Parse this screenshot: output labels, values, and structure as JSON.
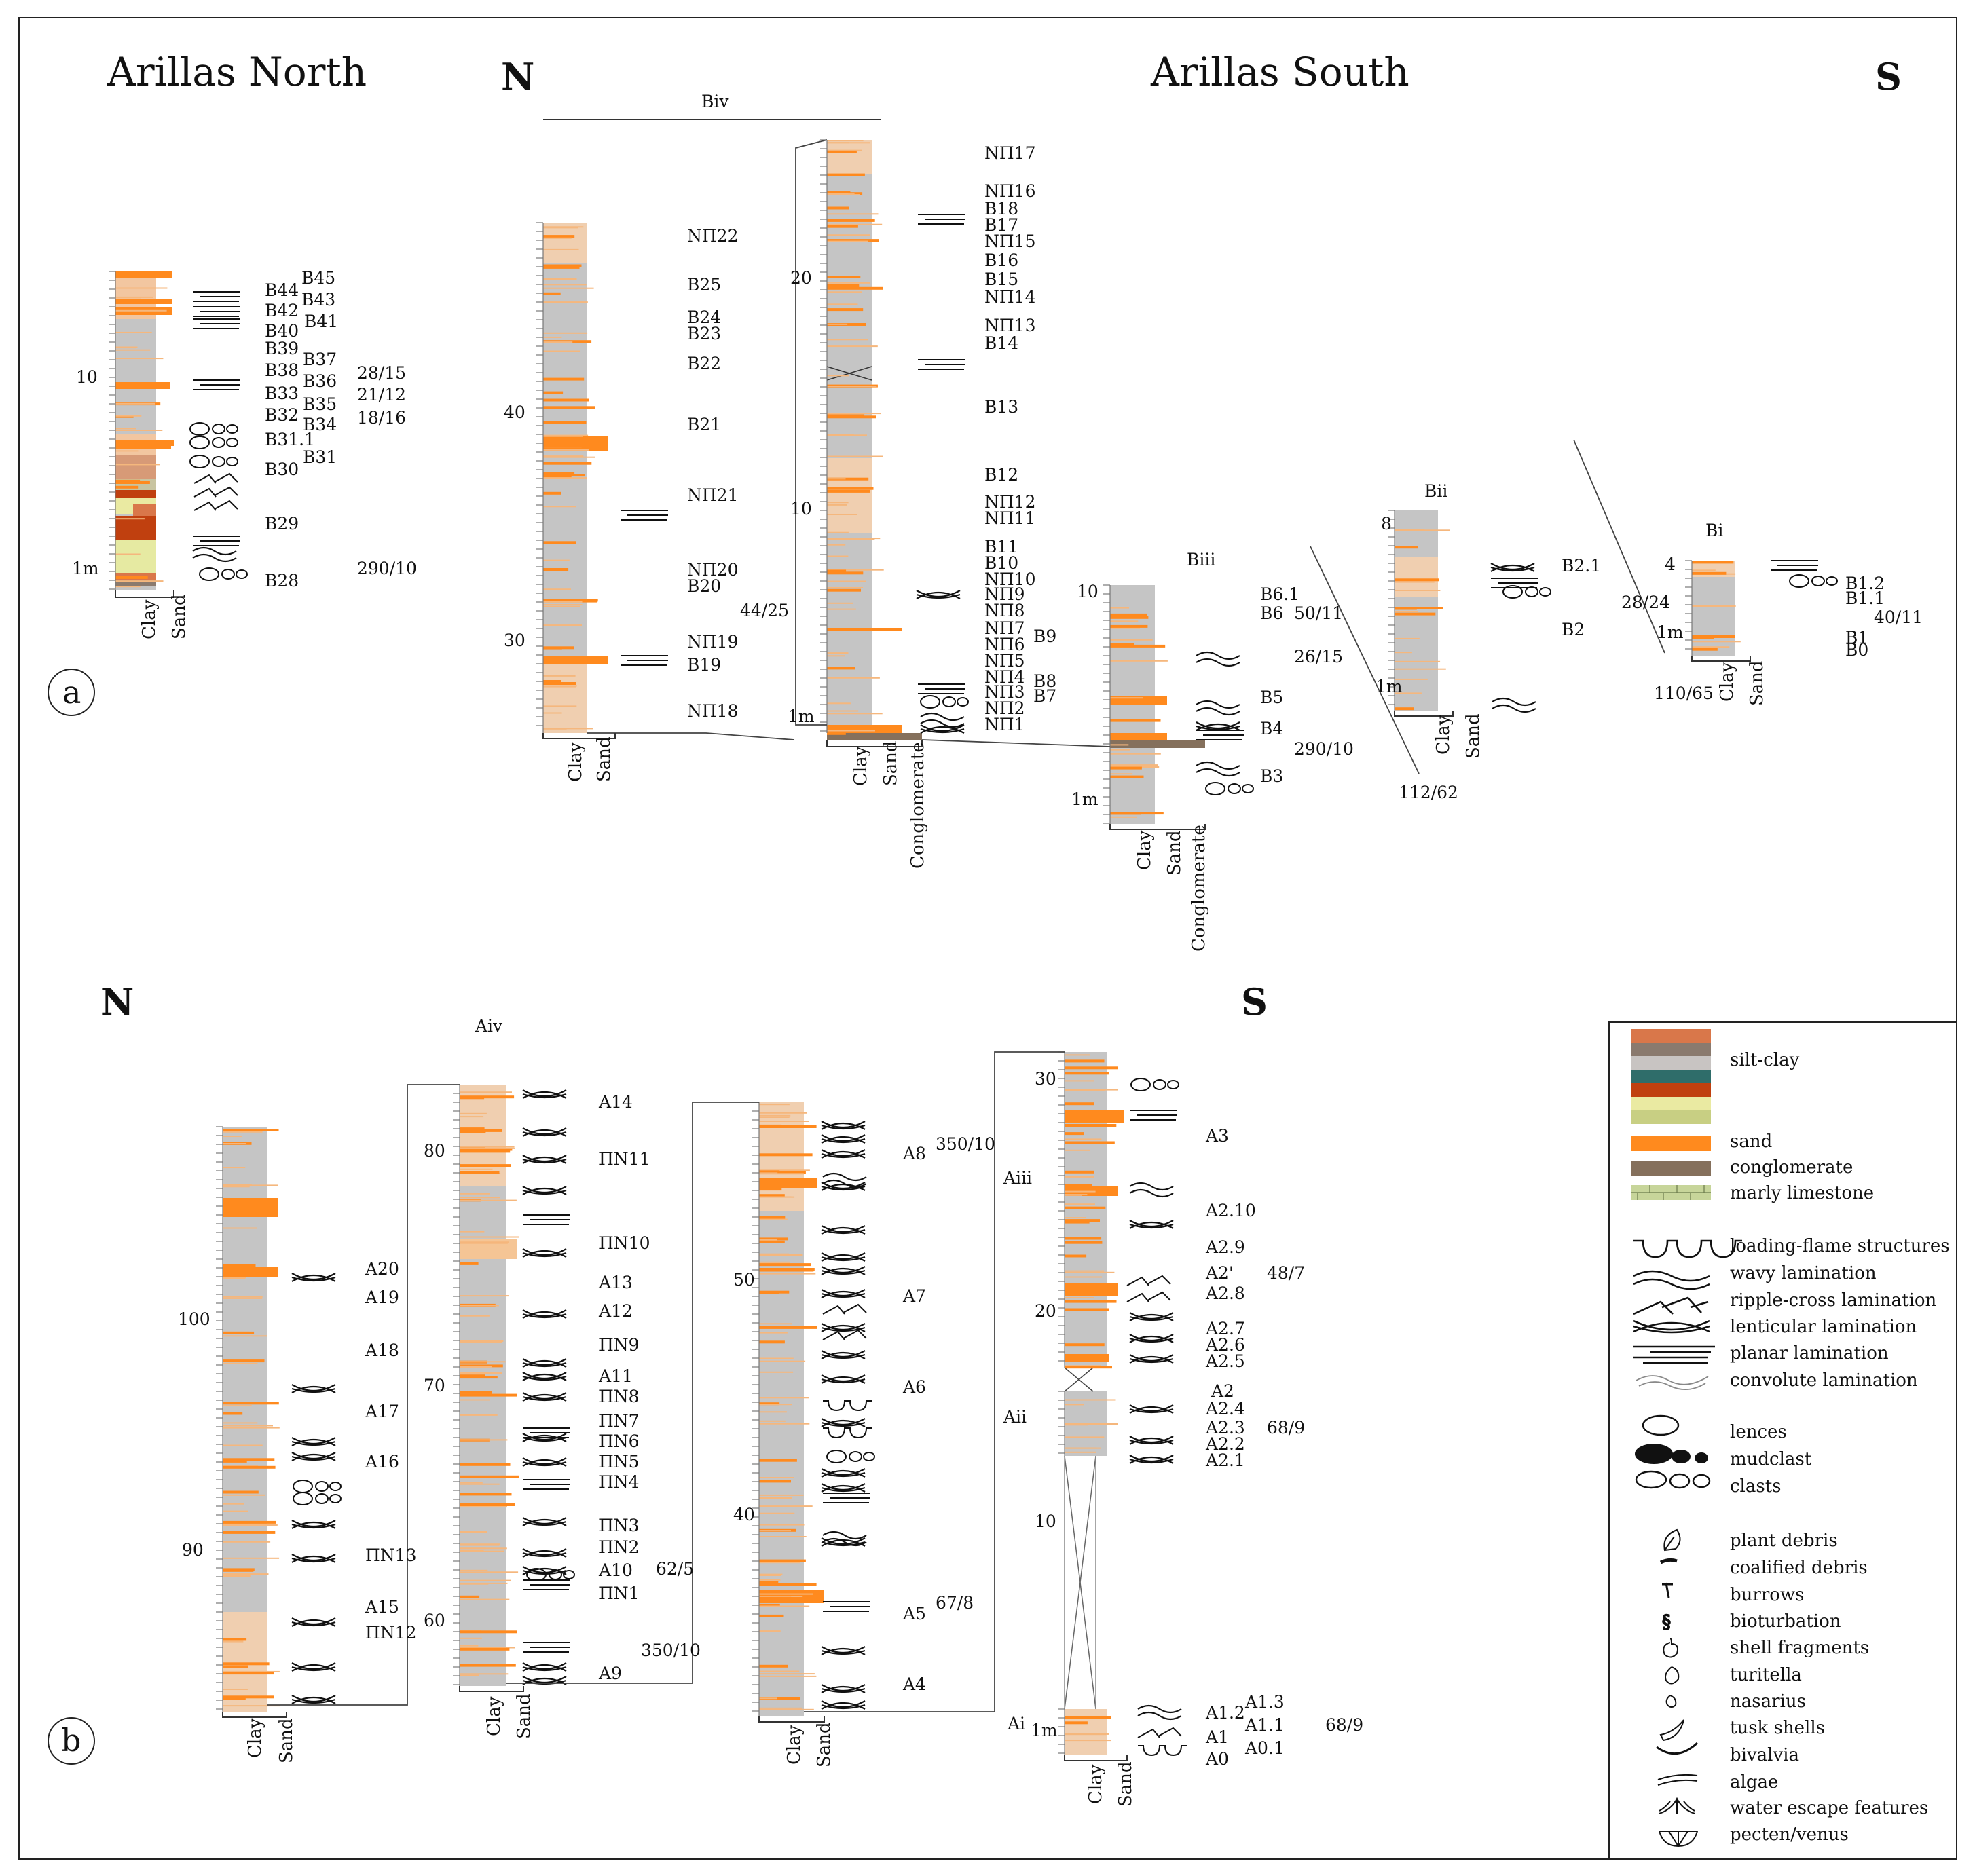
{
  "titles": {
    "arillas_north": "Arillas North",
    "arillas_south": "Arillas South",
    "north_top": "N",
    "south_top": "S",
    "north_bottom": "N",
    "south_bottom": "S",
    "panel_a": "a",
    "panel_b": "b"
  },
  "axis_labels": {
    "clay": "Clay",
    "sand": "Sand",
    "conglomerate": "Conglomerate",
    "one_meter": "1m"
  },
  "sections": {
    "north": {
      "ticks": [
        "10"
      ],
      "samples": [
        "B45",
        "B44",
        "B43",
        "B42",
        "B41",
        "B40",
        "B39",
        "B37",
        "B38",
        "B36",
        "B33",
        "B35",
        "B32",
        "B34",
        "B31.1",
        "B31",
        "B30",
        "B29",
        "B28"
      ],
      "orientations": [
        "28/15",
        "21/12",
        "18/16",
        "290/10"
      ]
    },
    "biv": {
      "name": "Biv",
      "ticks": [
        "40",
        "30"
      ],
      "samples": [
        "NΠ22",
        "B25",
        "B24",
        "B23",
        "B22",
        "B21",
        "NΠ21",
        "NΠ20",
        "B20",
        "NΠ19",
        "B19",
        "NΠ18"
      ],
      "orientations": [
        "44/25"
      ]
    },
    "biv2": {
      "ticks": [
        "20",
        "10"
      ],
      "samples": [
        "NΠ17",
        "NΠ16",
        "B18",
        "B17",
        "NΠ15",
        "B16",
        "B15",
        "NΠ14",
        "NΠ13",
        "B14",
        "B13",
        "B12",
        "NΠ12",
        "NΠ11",
        "B11",
        "B10",
        "NΠ10",
        "NΠ9",
        "NΠ8",
        "B9",
        "NΠ7",
        "NΠ6",
        "NΠ5",
        "NΠ4",
        "B8",
        "NΠ3",
        "B7",
        "NΠ2",
        "NΠ1"
      ]
    },
    "biii": {
      "name": "Biii",
      "ticks": [
        "10"
      ],
      "samples": [
        "B6.1",
        "B6",
        "B5",
        "B4",
        "B3"
      ],
      "orientations": [
        "50/11",
        "26/15",
        "290/10"
      ]
    },
    "bii": {
      "name": "Bii",
      "ticks": [
        "8"
      ],
      "samples": [
        "B2.1",
        "B2"
      ],
      "orientations": [
        "28/24",
        "112/62"
      ]
    },
    "bi": {
      "name": "Bi",
      "ticks": [
        "4"
      ],
      "samples": [
        "B1.2",
        "B1.1",
        "B1",
        "B0"
      ],
      "orientations": [
        "40/11",
        "110/65"
      ]
    },
    "a_col1": {
      "ticks": [
        "100",
        "90"
      ],
      "samples": [
        "A20",
        "A19",
        "A18",
        "A17",
        "A16",
        "ΠN13",
        "A15",
        "ΠN12"
      ]
    },
    "aiv": {
      "name": "Aiv",
      "ticks": [
        "80",
        "70",
        "60"
      ],
      "samples": [
        "A14",
        "ΠN11",
        "ΠN10",
        "A13",
        "A12",
        "ΠN9",
        "A11",
        "ΠN8",
        "ΠN7",
        "ΠN6",
        "ΠN5",
        "ΠN4",
        "ΠN3",
        "ΠN2",
        "A10",
        "ΠN1",
        "A9"
      ],
      "orientations": [
        "62/5",
        "350/10"
      ]
    },
    "a_col3": {
      "ticks": [
        "50",
        "40"
      ],
      "samples": [
        "A8",
        "A7",
        "A6",
        "A5",
        "A4"
      ],
      "orientations": [
        "350/10",
        "67/8"
      ]
    },
    "a_col4": {
      "ticks": [
        "30",
        "20",
        "10"
      ],
      "section_names": [
        "Aiii",
        "Aii",
        "Ai"
      ],
      "samples": [
        "A3",
        "A2.10",
        "A2.9",
        "A2'",
        "A2.8",
        "A2.7",
        "A2.6",
        "A2.5",
        "A2",
        "A2.4",
        "A2.3",
        "A2.2",
        "A2.1",
        "A1.3",
        "A1.2",
        "A1.1",
        "A1",
        "A0.1",
        "A0"
      ],
      "orientations": [
        "48/7",
        "68/9",
        "68/9"
      ]
    }
  },
  "legend": {
    "silt_clay": "silt-clay",
    "sand": "sand",
    "conglomerate": "conglomerate",
    "marly_limestone": "marly limestone",
    "structures": [
      "loading-flame structures",
      "wavy lamination",
      "ripple-cross lamination",
      "lenticular lamination",
      "planar lamination",
      "convolute lamination"
    ],
    "clasts": [
      "lences",
      "mudclast",
      "clasts"
    ],
    "fossils": [
      "plant debris",
      "coalified debris",
      "burrows",
      "bioturbation",
      "shell fragments",
      "turitella",
      "nasarius",
      "tusk shells",
      "bivalvia",
      "algae",
      "water escape features",
      "pecten/venus"
    ],
    "colors": {
      "silt_clay_swatches": [
        "#d9774a",
        "#8a7a6e",
        "#c8c4c2",
        "#2f6d6a",
        "#c0400f",
        "#eaeaa2",
        "#c8cf83"
      ],
      "sand": "#ff8a1e",
      "conglomerate": "#85705c",
      "marly_limestone": "#c7d59a",
      "column_gray": "#c5c5c5",
      "sand_light": "#f5c595"
    }
  }
}
